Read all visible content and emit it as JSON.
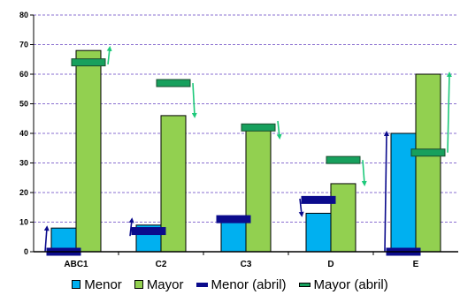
{
  "chart_data": {
    "type": "bar",
    "categories": [
      "ABC1",
      "C2",
      "C3",
      "D",
      "E"
    ],
    "ylim": [
      0,
      80
    ],
    "yticks": [
      0,
      10,
      20,
      30,
      40,
      50,
      60,
      70,
      80
    ],
    "grid": true,
    "legend_position": "bottom",
    "series": [
      {
        "name": "Menor",
        "kind": "bar",
        "color": "#00b0f0",
        "values": [
          8,
          9,
          10,
          13,
          40
        ]
      },
      {
        "name": "Mayor",
        "kind": "bar",
        "color": "#92d050",
        "values": [
          68,
          46,
          41,
          23,
          60
        ]
      },
      {
        "name": "Menor (abril)",
        "kind": "marker",
        "color": "#0b0b8c",
        "values": [
          0,
          7,
          11,
          17.5,
          0
        ]
      },
      {
        "name": "Mayor (abril)",
        "kind": "marker",
        "color": "#17a05d",
        "values": [
          64,
          57,
          42,
          31,
          33.5
        ]
      }
    ],
    "change_arrows": {
      "menor": {
        "color": "#0b0b8c",
        "directions": [
          "up",
          "up",
          "none",
          "down",
          "up"
        ]
      },
      "mayor": {
        "color": "#1dc97a",
        "directions": [
          "up",
          "down",
          "down",
          "down",
          "up"
        ]
      }
    }
  }
}
